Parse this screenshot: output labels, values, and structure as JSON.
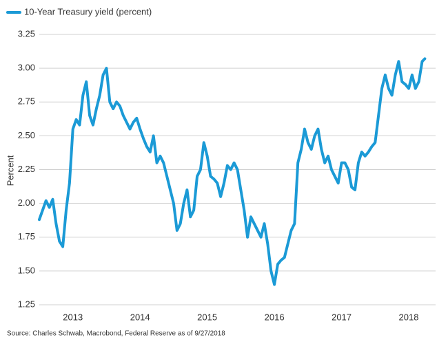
{
  "chart_data": {
    "type": "line",
    "series": [
      {
        "name": "10-Year Treasury yield (percent)",
        "color": "#1b9ad6",
        "values": [
          1.88,
          1.95,
          2.02,
          1.97,
          2.03,
          1.85,
          1.72,
          1.68,
          1.95,
          2.15,
          2.55,
          2.62,
          2.58,
          2.8,
          2.9,
          2.65,
          2.58,
          2.7,
          2.8,
          2.95,
          3.0,
          2.75,
          2.7,
          2.75,
          2.72,
          2.65,
          2.6,
          2.55,
          2.6,
          2.63,
          2.55,
          2.48,
          2.42,
          2.38,
          2.5,
          2.3,
          2.35,
          2.3,
          2.2,
          2.1,
          2.0,
          1.8,
          1.85,
          2.0,
          2.1,
          1.9,
          1.95,
          2.2,
          2.25,
          2.45,
          2.35,
          2.2,
          2.18,
          2.15,
          2.05,
          2.15,
          2.28,
          2.25,
          2.3,
          2.25,
          2.1,
          1.95,
          1.75,
          1.9,
          1.85,
          1.8,
          1.75,
          1.85,
          1.7,
          1.5,
          1.4,
          1.55,
          1.58,
          1.6,
          1.7,
          1.8,
          1.85,
          2.3,
          2.4,
          2.55,
          2.45,
          2.4,
          2.5,
          2.55,
          2.4,
          2.3,
          2.35,
          2.25,
          2.2,
          2.15,
          2.3,
          2.3,
          2.25,
          2.12,
          2.1,
          2.3,
          2.38,
          2.35,
          2.38,
          2.42,
          2.45,
          2.65,
          2.85,
          2.95,
          2.85,
          2.8,
          2.95,
          3.05,
          2.9,
          2.88,
          2.85,
          2.95,
          2.85,
          2.9,
          3.05,
          3.07
        ]
      }
    ],
    "x": [
      2013.0,
      2013.05,
      2013.1,
      2013.15,
      2013.2,
      2013.25,
      2013.3,
      2013.35,
      2013.4,
      2013.45,
      2013.5,
      2013.55,
      2013.6,
      2013.65,
      2013.7,
      2013.75,
      2013.8,
      2013.85,
      2013.9,
      2013.95,
      2014.0,
      2014.05,
      2014.1,
      2014.15,
      2014.2,
      2014.25,
      2014.3,
      2014.35,
      2014.4,
      2014.45,
      2014.5,
      2014.55,
      2014.6,
      2014.65,
      2014.7,
      2014.75,
      2014.8,
      2014.85,
      2014.9,
      2014.95,
      2015.0,
      2015.05,
      2015.1,
      2015.15,
      2015.2,
      2015.25,
      2015.3,
      2015.35,
      2015.4,
      2015.45,
      2015.5,
      2015.55,
      2015.6,
      2015.65,
      2015.7,
      2015.75,
      2015.8,
      2015.85,
      2015.9,
      2015.95,
      2016.0,
      2016.05,
      2016.1,
      2016.15,
      2016.2,
      2016.25,
      2016.3,
      2016.35,
      2016.4,
      2016.45,
      2016.5,
      2016.55,
      2016.6,
      2016.65,
      2016.7,
      2016.75,
      2016.8,
      2016.85,
      2016.9,
      2016.95,
      2017.0,
      2017.05,
      2017.1,
      2017.15,
      2017.2,
      2017.25,
      2017.3,
      2017.35,
      2017.4,
      2017.45,
      2017.5,
      2017.55,
      2017.6,
      2017.65,
      2017.7,
      2017.75,
      2017.8,
      2017.85,
      2017.9,
      2017.95,
      2018.0,
      2018.05,
      2018.1,
      2018.15,
      2018.2,
      2018.25,
      2018.3,
      2018.35,
      2018.4,
      2018.45,
      2018.5,
      2018.55,
      2018.6,
      2018.65,
      2018.7,
      2018.74
    ],
    "xlim": [
      2013.0,
      2018.9
    ],
    "xticks": [
      {
        "value": 2013.5,
        "label": "2013"
      },
      {
        "value": 2014.5,
        "label": "2014"
      },
      {
        "value": 2015.5,
        "label": "2015"
      },
      {
        "value": 2016.5,
        "label": "2016"
      },
      {
        "value": 2017.5,
        "label": "2017"
      },
      {
        "value": 2018.5,
        "label": "2018"
      }
    ],
    "ylabel": "Percent",
    "ylim": [
      1.25,
      3.25
    ],
    "yticks": [
      {
        "value": 1.25,
        "label": "1.25"
      },
      {
        "value": 1.5,
        "label": "1.50"
      },
      {
        "value": 1.75,
        "label": "1.75"
      },
      {
        "value": 2.0,
        "label": "2.00"
      },
      {
        "value": 2.25,
        "label": "2.25"
      },
      {
        "value": 2.5,
        "label": "2.50"
      },
      {
        "value": 2.75,
        "label": "2.75"
      },
      {
        "value": 3.0,
        "label": "3.00"
      },
      {
        "value": 3.25,
        "label": "3.25"
      }
    ],
    "grid": true,
    "source": "Source: Charles Schwab, Macrobond, Federal Reserve as of 9/27/2018"
  }
}
